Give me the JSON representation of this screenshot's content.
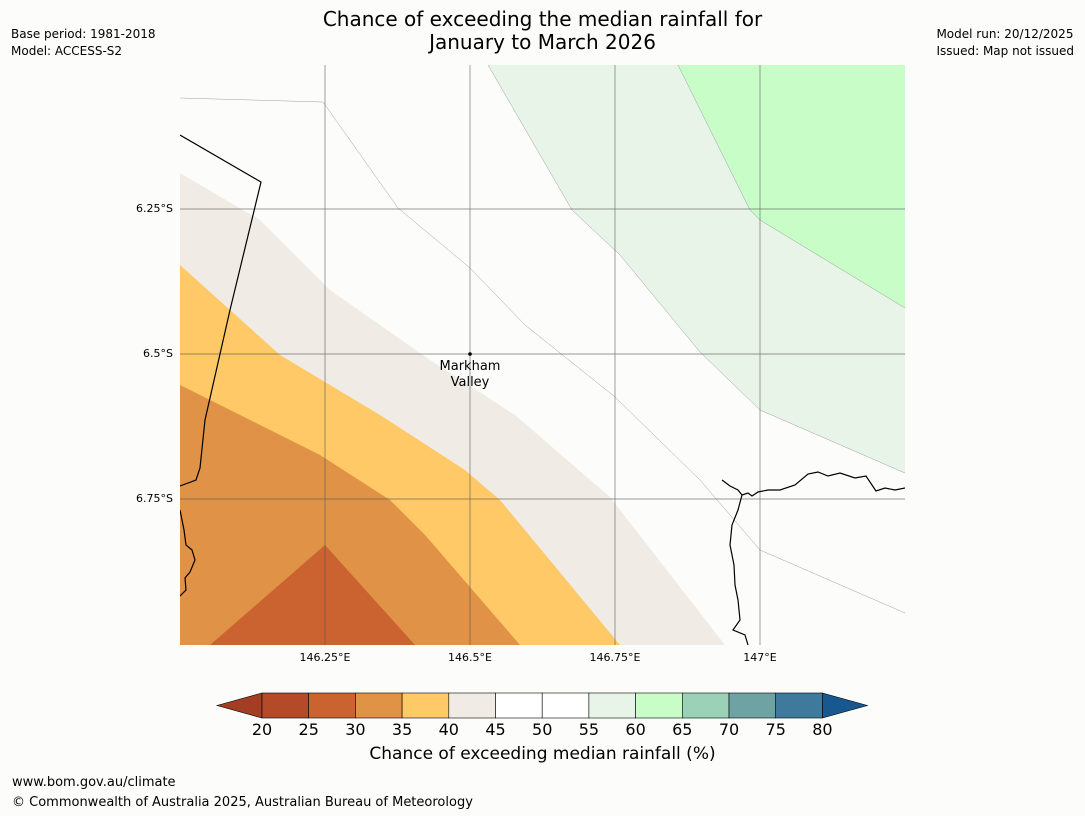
{
  "title": {
    "line1": "Chance of exceeding the median rainfall for",
    "line2": "January to March 2026"
  },
  "meta_left": {
    "base_period": "Base period: 1981-2018",
    "model": "Model: ACCESS-S2"
  },
  "meta_right": {
    "model_run": "Model run: 20/12/2025",
    "issued": "Issued: Map not issued"
  },
  "map": {
    "lat_labels": [
      "6.25°S",
      "6.5°S",
      "6.75°S"
    ],
    "lon_labels": [
      "146.25°E",
      "146.5°E",
      "146.75°E",
      "147°E"
    ],
    "place": {
      "name_line1": "Markham",
      "name_line2": "Valley"
    }
  },
  "colorbar": {
    "ticks": [
      "20",
      "25",
      "30",
      "35",
      "40",
      "45",
      "50",
      "55",
      "60",
      "65",
      "70",
      "75",
      "80"
    ],
    "colors": [
      "#a33d24",
      "#b44a28",
      "#cb6331",
      "#e09246",
      "#fec966",
      "#f0ebe5",
      "#ffffff",
      "#ffffff",
      "#e9f4e9",
      "#c8fdc8",
      "#9bd1b6",
      "#6ea3a4",
      "#3f7a9c",
      "#175890"
    ],
    "label": "Chance of exceeding median rainfall (%)"
  },
  "footer": {
    "url": "www.bom.gov.au/climate",
    "copyright": "© Commonwealth of Australia 2025, Australian Bureau of Meteorology"
  }
}
